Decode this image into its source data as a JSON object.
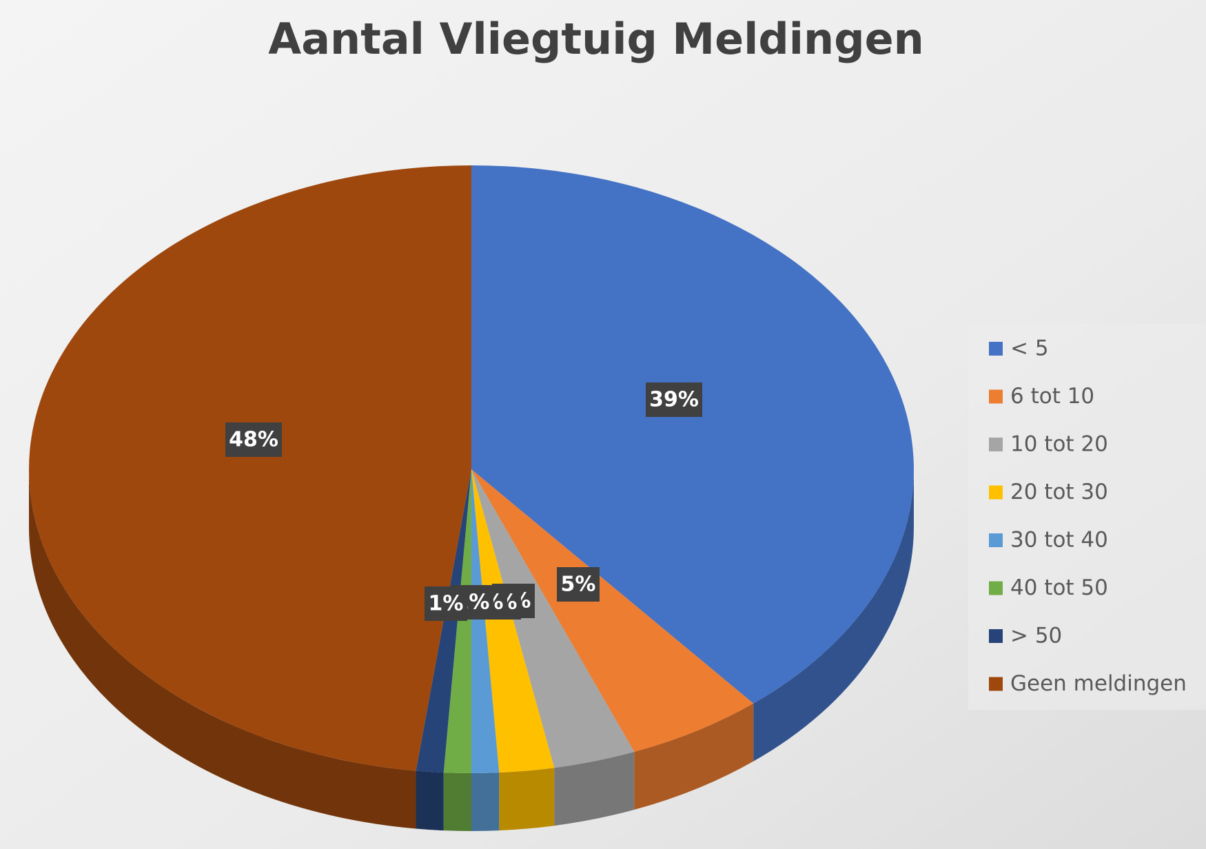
{
  "chart_data": {
    "type": "pie",
    "title": "Aantal Vliegtuig Meldingen",
    "categories": [
      "< 5",
      "6 tot 10",
      "10 tot 20",
      "20 tot 30",
      "30 tot 40",
      "40 tot 50",
      "> 50",
      "Geen meldingen"
    ],
    "values": [
      39,
      5,
      3,
      2,
      1,
      1,
      1,
      48
    ],
    "value_labels": [
      "39%",
      "5%",
      "3%",
      "2%",
      "1%",
      "1%",
      "1%",
      "48%"
    ],
    "colors": [
      "#4472c4",
      "#ed7d31",
      "#a5a5a5",
      "#ffc000",
      "#5b9bd5",
      "#70ad47",
      "#264478",
      "#9e480e"
    ],
    "legend": "right"
  }
}
